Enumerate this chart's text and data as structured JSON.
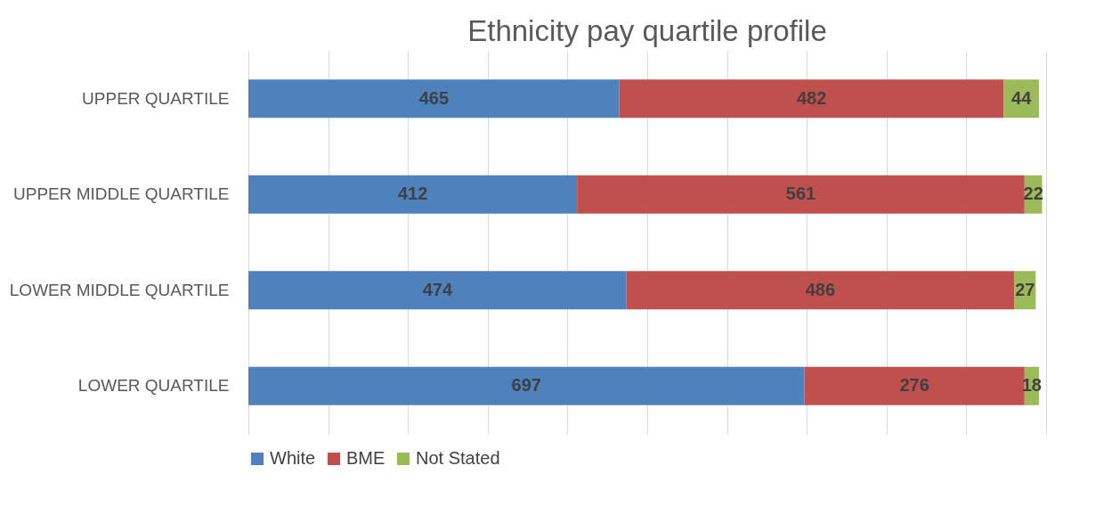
{
  "chart_data": {
    "type": "bar",
    "orientation": "horizontal",
    "stacked": true,
    "title": "Ethnicity pay quartile profile",
    "categories": [
      "UPPER QUARTILE",
      "UPPER MIDDLE QUARTILE",
      "LOWER MIDDLE QUARTILE",
      "LOWER QUARTILE"
    ],
    "series": [
      {
        "name": "White",
        "color": "#4f81bd",
        "values": [
          465,
          412,
          474,
          697
        ]
      },
      {
        "name": "BME",
        "color": "#c0504d",
        "values": [
          482,
          561,
          486,
          276
        ]
      },
      {
        "name": "Not Stated",
        "color": "#9bbb59",
        "values": [
          44,
          22,
          27,
          18
        ]
      }
    ],
    "xlim": [
      0,
      1000
    ],
    "xticks": [
      {
        "value": 0,
        "label": null
      },
      {
        "value": 100,
        "label": null
      },
      {
        "value": 200,
        "label": null
      },
      {
        "value": 300,
        "label": null
      },
      {
        "value": 400,
        "label": null
      },
      {
        "value": 500,
        "label": null
      },
      {
        "value": 600,
        "label": null
      },
      {
        "value": 700,
        "label": null
      },
      {
        "value": 800,
        "label": null
      },
      {
        "value": 900,
        "label": null
      },
      {
        "value": 1000,
        "label": null
      }
    ],
    "tick_labels": "y",
    "grid": "x",
    "legend": "bottom",
    "data_labels": true
  }
}
